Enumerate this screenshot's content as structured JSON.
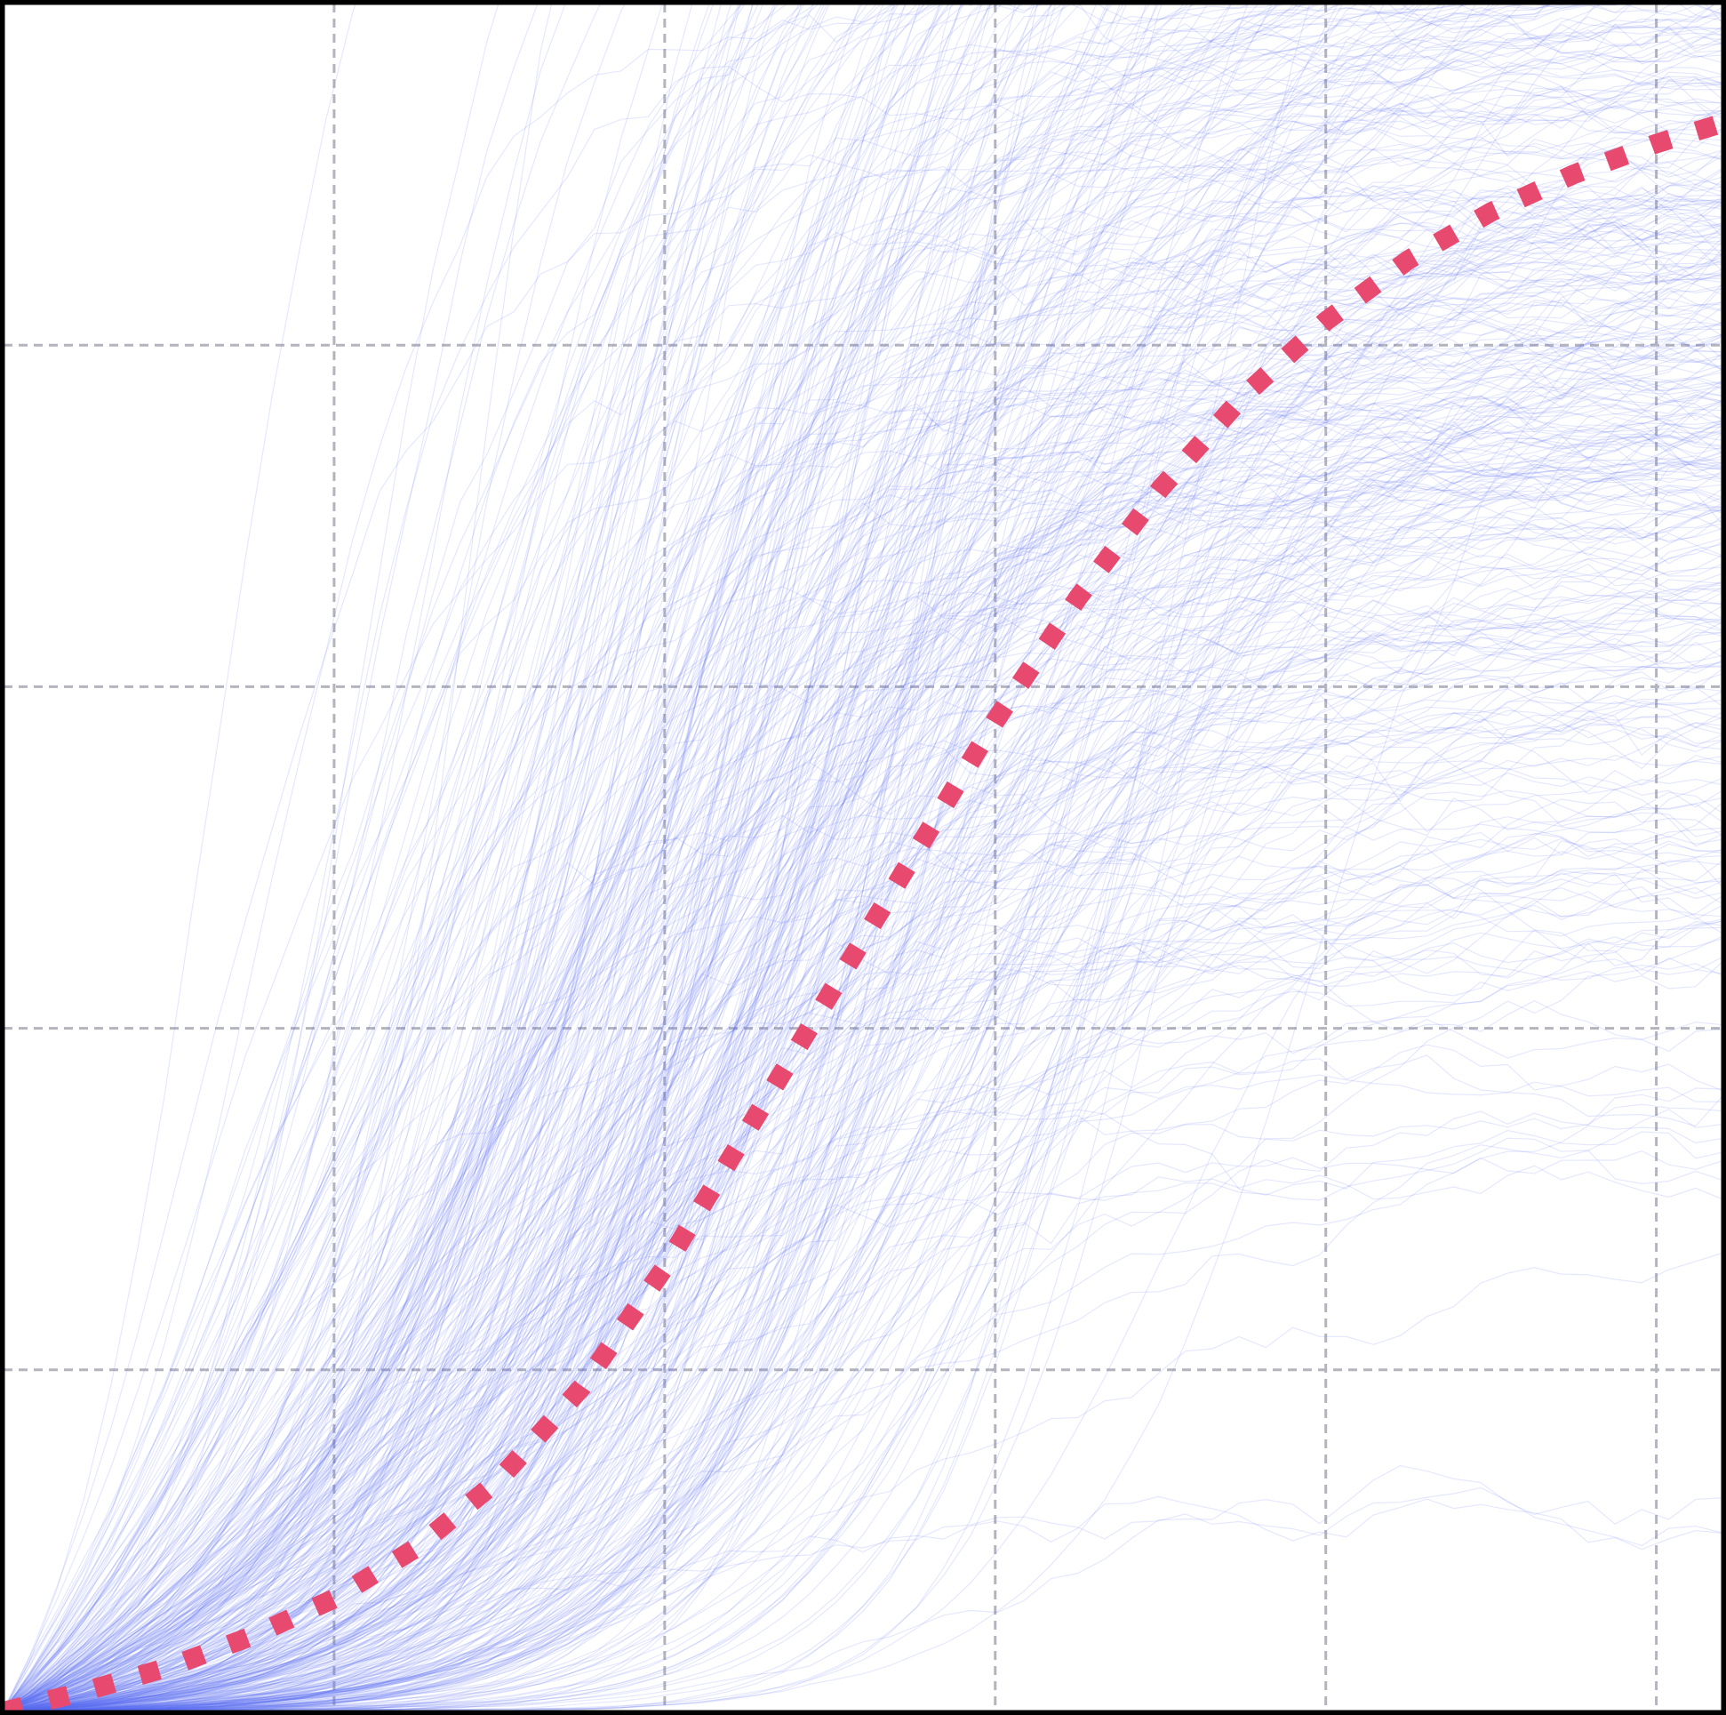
{
  "chart_data": {
    "type": "line",
    "title": "",
    "xlabel": "",
    "ylabel": "",
    "xlim": [
      0,
      5.2
    ],
    "ylim": [
      0,
      5
    ],
    "grid": true,
    "grid_style": "dashed",
    "x_grid_values": [
      1,
      2,
      3,
      4,
      5
    ],
    "y_grid_values": [
      1,
      2,
      3,
      4
    ],
    "ensemble": {
      "description_hidden": true,
      "count": 500,
      "color": "#5b6ef5",
      "approx_band": {
        "x": [
          0,
          0.5,
          1,
          1.5,
          2,
          2.5,
          3,
          3.5,
          4,
          4.5,
          5,
          5.2
        ],
        "lower": [
          0,
          0,
          0,
          0,
          0,
          0.1,
          0.2,
          0.3,
          0.4,
          0.5,
          0.6,
          0.6
        ],
        "upper": [
          0.3,
          0.5,
          1.0,
          2.0,
          4.5,
          5.0,
          5.0,
          5.0,
          5.0,
          5.0,
          5.0,
          5.0
        ]
      }
    },
    "series": [
      {
        "style": "dotted",
        "color": "#e84a6f",
        "x": [
          0,
          0.25,
          0.5,
          0.75,
          1.0,
          1.25,
          1.5,
          1.75,
          2.0,
          2.25,
          2.5,
          2.75,
          3.0,
          3.25,
          3.5,
          3.75,
          4.0,
          4.25,
          4.5,
          4.75,
          5.0,
          5.2
        ],
        "y": [
          0.0,
          0.06,
          0.13,
          0.22,
          0.33,
          0.48,
          0.68,
          0.95,
          1.3,
          1.7,
          2.1,
          2.5,
          2.9,
          3.26,
          3.58,
          3.85,
          4.07,
          4.25,
          4.39,
          4.5,
          4.59,
          4.65
        ],
        "values_from_top": false
      }
    ],
    "border_color": "#000000",
    "grid_color": "#b4b4bc"
  }
}
